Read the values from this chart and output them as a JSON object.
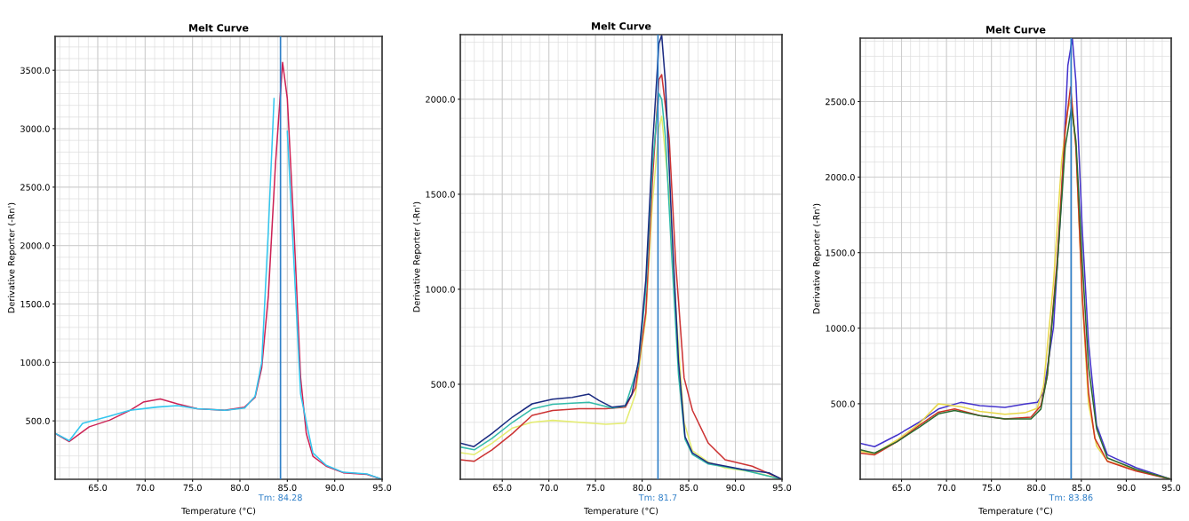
{
  "chart_data": [
    {
      "type": "line",
      "title": "Melt Curve",
      "xlabel": "Temperature (°C)",
      "ylabel": "Derivative Reporter (-Rn')",
      "xlim": [
        60.5,
        95
      ],
      "xticks": [
        {
          "value": 65,
          "label": "65.0"
        },
        {
          "value": 70,
          "label": "70.0"
        },
        {
          "value": 75,
          "label": "75.0"
        },
        {
          "value": 80,
          "label": "80.0"
        },
        {
          "value": 85,
          "label": "85.0"
        },
        {
          "value": 90,
          "label": "90.0"
        },
        {
          "value": 95,
          "label": "95.0"
        }
      ],
      "ylim": [
        0,
        3790
      ],
      "yticks": [
        {
          "value": 500,
          "label": "500.0"
        },
        {
          "value": 1000,
          "label": "1000.0"
        },
        {
          "value": 1500,
          "label": "1500.0"
        },
        {
          "value": 2000,
          "label": "2000.0"
        },
        {
          "value": 2500,
          "label": "2500.0"
        },
        {
          "value": 3000,
          "label": "3000.0"
        },
        {
          "value": 3500,
          "label": "3500.0"
        }
      ],
      "grid": true,
      "ref_lines": [
        {
          "axis": "x",
          "value": 84.28,
          "label": "Tm: 84.28",
          "color": "#2f7fc8"
        }
      ],
      "series": [
        {
          "color": "#cc2255",
          "x": [
            60.5,
            62.0,
            64.1,
            66.25,
            68.4,
            69.8,
            71.6,
            73.4,
            75.5,
            78.4,
            80.5,
            81.6,
            82.3,
            83.0,
            83.75,
            84.5,
            85.0,
            85.7,
            86.4,
            87.0,
            87.7,
            89.1,
            90.9,
            93.4,
            95.0
          ],
          "values": [
            393,
            323,
            449,
            506,
            590,
            660,
            688,
            646,
            604,
            590,
            618,
            702,
            955,
            1573,
            2697,
            3567,
            3258,
            2135,
            871,
            393,
            197,
            112,
            56,
            42,
            0
          ]
        },
        {
          "color": "#33c6ee",
          "x": [
            60.5,
            62.0,
            63.4,
            66.2,
            68.4,
            71.25,
            73.4,
            75.5,
            78.4,
            80.5,
            81.6,
            82.3,
            83.0,
            83.6,
            84.0,
            84.4,
            85.0,
            85.7,
            86.4,
            87.1,
            87.7,
            89.1,
            90.9,
            93.4,
            95.0
          ],
          "values": [
            393,
            330,
            478,
            540,
            590,
            618,
            630,
            604,
            590,
            610,
            710,
            1000,
            2135,
            3258,
            null,
            null,
            2978,
            1854,
            730,
            449,
            225,
            120,
            60,
            45,
            0
          ]
        }
      ]
    },
    {
      "type": "line",
      "title": "Melt Curve",
      "xlabel": "Temperature (°C)",
      "ylabel": "Derivative Reporter (-Rn')",
      "xlim": [
        60.5,
        95
      ],
      "xticks": [
        {
          "value": 65,
          "label": "65.0"
        },
        {
          "value": 70,
          "label": "70.0"
        },
        {
          "value": 75,
          "label": "75.0"
        },
        {
          "value": 80,
          "label": "80.0"
        },
        {
          "value": 85,
          "label": "85.0"
        },
        {
          "value": 90,
          "label": "90.0"
        },
        {
          "value": 95,
          "label": "95.0"
        }
      ],
      "ylim": [
        0,
        2340
      ],
      "yticks": [
        {
          "value": 500,
          "label": "500.0"
        },
        {
          "value": 1000,
          "label": "1000.0"
        },
        {
          "value": 1500,
          "label": "1500.0"
        },
        {
          "value": 2000,
          "label": "2000.0"
        }
      ],
      "grid": true,
      "ref_lines": [
        {
          "axis": "x",
          "value": 81.7,
          "label": "Tm: 81.7",
          "color": "#2f7fc8"
        }
      ],
      "series": [
        {
          "color": "#e4ec70",
          "x": [
            60.5,
            62.0,
            63.9,
            66.1,
            68.2,
            70.4,
            73.2,
            76.1,
            78.2,
            79.3,
            80.4,
            81.1,
            81.8,
            82.1,
            82.9,
            83.6,
            84.5,
            85.4,
            87.1,
            88.9,
            91.8,
            95.0
          ],
          "values": [
            140,
            130,
            190,
            270,
            300,
            310,
            300,
            290,
            295,
            450,
            850,
            1450,
            1850,
            1910,
            1500,
            900,
            300,
            150,
            90,
            60,
            40,
            0
          ]
        },
        {
          "color": "#cc3333",
          "x": [
            60.5,
            62.0,
            63.9,
            66.1,
            68.2,
            70.4,
            73.2,
            76.1,
            78.2,
            79.3,
            80.4,
            81.1,
            81.8,
            82.1,
            82.9,
            83.6,
            84.5,
            85.4,
            87.1,
            88.9,
            91.8,
            95.0
          ],
          "values": [
            103,
            95,
            155,
            241,
            336,
            362,
            371,
            371,
            379,
            483,
            879,
            1569,
            2103,
            2129,
            1793,
            1138,
            534,
            362,
            190,
            103,
            69,
            0
          ]
        },
        {
          "color": "#33bbaa",
          "x": [
            60.5,
            62.0,
            63.9,
            66.1,
            68.2,
            70.4,
            72.5,
            74.3,
            76.8,
            78.2,
            79.6,
            80.4,
            81.1,
            81.8,
            82.1,
            82.5,
            83.2,
            83.9,
            84.6,
            85.4,
            87.1,
            90.7,
            95.0
          ],
          "values": [
            170,
            155,
            215,
            300,
            370,
            395,
            400,
            405,
            375,
            385,
            600,
            1000,
            1650,
            2030,
            2000,
            1800,
            1150,
            550,
            210,
            130,
            80,
            50,
            0
          ]
        },
        {
          "color": "#1a2a80",
          "x": [
            60.5,
            61.96,
            63.9,
            66.1,
            68.2,
            70.4,
            72.5,
            74.3,
            75.4,
            76.8,
            78.2,
            78.9,
            79.6,
            80.4,
            81.1,
            81.8,
            82.1,
            82.5,
            83.2,
            83.9,
            84.6,
            85.4,
            87.1,
            90.7,
            93.6,
            95.0
          ],
          "values": [
            190,
            172,
            241,
            328,
            397,
            422,
            431,
            448,
            414,
            379,
            388,
            448,
            621,
            1052,
            1741,
            2293,
            2336,
            2086,
            1310,
            621,
            224,
            138,
            86,
            52,
            34,
            0
          ]
        }
      ]
    },
    {
      "type": "line",
      "title": "Melt Curve",
      "xlabel": "Temperature (°C)",
      "ylabel": "Derivative Reporter (-Rn')",
      "xlim": [
        60.4,
        95
      ],
      "xticks": [
        {
          "value": 65,
          "label": "65.0"
        },
        {
          "value": 70,
          "label": "70.0"
        },
        {
          "value": 75,
          "label": "75.0"
        },
        {
          "value": 80,
          "label": "80.0"
        },
        {
          "value": 85,
          "label": "85.0"
        },
        {
          "value": 90,
          "label": "90.0"
        },
        {
          "value": 95,
          "label": "95.0"
        }
      ],
      "ylim": [
        0,
        2920
      ],
      "yticks": [
        {
          "value": 500,
          "label": "500.0"
        },
        {
          "value": 1000,
          "label": "1000.0"
        },
        {
          "value": 1500,
          "label": "1500.0"
        },
        {
          "value": 2000,
          "label": "2000.0"
        },
        {
          "value": 2500,
          "label": "2500.0"
        }
      ],
      "grid": true,
      "ref_lines": [
        {
          "axis": "x",
          "value": 83.86,
          "label": "Tm: 83.86",
          "color": "#2f7fc8"
        }
      ],
      "series": [
        {
          "color": "#4433cc",
          "x": [
            60.4,
            62.0,
            64.5,
            67.0,
            69.1,
            71.6,
            73.7,
            76.5,
            78.7,
            80.1,
            80.8,
            81.9,
            82.8,
            83.5,
            84.0,
            84.4,
            85.1,
            85.8,
            86.7,
            87.9,
            91.1,
            95.0
          ],
          "values": [
            238,
            216,
            292,
            379,
            465,
            509,
            487,
            476,
            498,
            509,
            574,
            1006,
            1872,
            2738,
            2920,
            2630,
            1656,
            898,
            357,
            162,
            76,
            0
          ]
        },
        {
          "color": "#e8d84a",
          "x": [
            60.4,
            62.0,
            64.5,
            67.0,
            69.1,
            71.6,
            73.7,
            76.5,
            78.7,
            80.1,
            80.8,
            81.9,
            82.8,
            83.5,
            83.9,
            84.4,
            85.1,
            85.8,
            86.7,
            87.9,
            91.1,
            95.0
          ],
          "values": [
            185,
            170,
            260,
            370,
            500,
            480,
            450,
            430,
            440,
            470,
            620,
            1300,
            2100,
            2450,
            2520,
            2200,
            1200,
            500,
            220,
            120,
            60,
            0
          ]
        },
        {
          "color": "#cc3322",
          "x": [
            60.4,
            62.0,
            64.5,
            67.0,
            69.1,
            70.9,
            73.7,
            76.5,
            79.4,
            80.5,
            81.2,
            82.3,
            83.2,
            83.8,
            84.4,
            85.1,
            85.8,
            86.5,
            87.9,
            91.1,
            95.0
          ],
          "values": [
            173,
            162,
            249,
            357,
            444,
            465,
            422,
            400,
            411,
            487,
            682,
            1439,
            2305,
            2597,
            2197,
            1223,
            574,
            271,
            119,
            54,
            0
          ]
        },
        {
          "color": "#2a6a30",
          "x": [
            60.4,
            62.0,
            64.5,
            67.0,
            69.1,
            70.9,
            73.7,
            76.5,
            79.4,
            80.5,
            81.2,
            82.3,
            83.2,
            83.9,
            84.4,
            85.1,
            85.8,
            86.7,
            87.9,
            91.1,
            95.0
          ],
          "values": [
            195,
            173,
            249,
            346,
            433,
            455,
            422,
            400,
            400,
            465,
            682,
            1396,
            2197,
            2457,
            2240,
            1439,
            747,
            335,
            141,
            65,
            0
          ]
        }
      ]
    }
  ]
}
